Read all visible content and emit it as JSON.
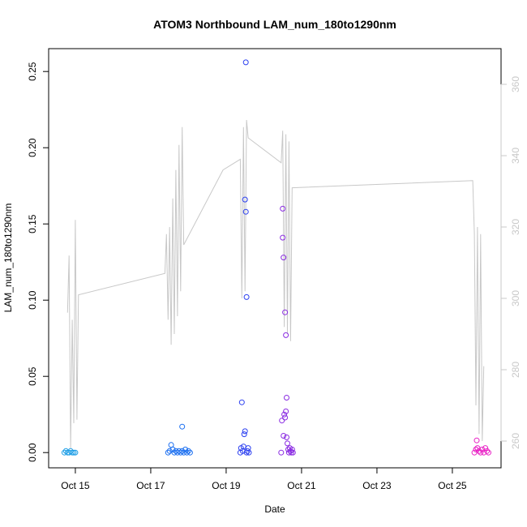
{
  "chart_data": {
    "type": "scatter",
    "title": "ATOM3 Northbound LAM_num_180to1290nm",
    "xlabel": "Date",
    "ylabel": "LAM_num_180to1290nm",
    "xlim": [
      "2016-10-14 07:00",
      "2016-10-26 07:00"
    ],
    "ylim": [
      -0.01,
      0.265
    ],
    "y2lim": [
      252.5,
      370
    ],
    "x_ticks": [
      {
        "date": "2016-10-15",
        "label": "Oct 15"
      },
      {
        "date": "2016-10-17",
        "label": "Oct 17"
      },
      {
        "date": "2016-10-19",
        "label": "Oct 19"
      },
      {
        "date": "2016-10-21",
        "label": "Oct 21"
      },
      {
        "date": "2016-10-23",
        "label": "Oct 23"
      },
      {
        "date": "2016-10-25",
        "label": "Oct 25"
      }
    ],
    "y_ticks": [
      {
        "value": 0.0,
        "label": "0.00"
      },
      {
        "value": 0.05,
        "label": "0.05"
      },
      {
        "value": 0.1,
        "label": "0.10"
      },
      {
        "value": 0.15,
        "label": "0.15"
      },
      {
        "value": 0.2,
        "label": "0.20"
      },
      {
        "value": 0.25,
        "label": "0.25"
      }
    ],
    "y2_ticks": [
      {
        "value": 260,
        "label": "260"
      },
      {
        "value": 280,
        "label": "280"
      },
      {
        "value": 300,
        "label": "300"
      },
      {
        "value": 320,
        "label": "320"
      },
      {
        "value": 340,
        "label": "340"
      },
      {
        "value": 360,
        "label": "360"
      }
    ],
    "grid": false,
    "colors": {
      "box": "#000000",
      "line": "#c8c8c8",
      "right_axis": "#c8c8c8"
    },
    "scatter_points": [
      {
        "x": "2016-10-14 17:00",
        "y": 0.0,
        "color": "#1e9ee6"
      },
      {
        "x": "2016-10-14 18:00",
        "y": 0.001,
        "color": "#1e9ee6"
      },
      {
        "x": "2016-10-14 19:00",
        "y": 0.0,
        "color": "#1e9ee6"
      },
      {
        "x": "2016-10-14 20:00",
        "y": 0.0,
        "color": "#1e9ee6"
      },
      {
        "x": "2016-10-14 21:00",
        "y": 0.001,
        "color": "#1e9ee6"
      },
      {
        "x": "2016-10-14 22:00",
        "y": 0.0,
        "color": "#1e9ee6"
      },
      {
        "x": "2016-10-14 23:00",
        "y": 0.0,
        "color": "#1e9ee6"
      },
      {
        "x": "2016-10-15 00:00",
        "y": 0.0,
        "color": "#1e9ee6"
      },
      {
        "x": "2016-10-17 11:00",
        "y": 0.0,
        "color": "#1a6ef0"
      },
      {
        "x": "2016-10-17 12:00",
        "y": 0.001,
        "color": "#1a6ef0"
      },
      {
        "x": "2016-10-17 13:00",
        "y": 0.005,
        "color": "#1a6ef0"
      },
      {
        "x": "2016-10-17 14:00",
        "y": 0.002,
        "color": "#1a6ef0"
      },
      {
        "x": "2016-10-17 15:00",
        "y": 0.0,
        "color": "#1a6ef0"
      },
      {
        "x": "2016-10-17 16:00",
        "y": 0.001,
        "color": "#1a6ef0"
      },
      {
        "x": "2016-10-17 17:00",
        "y": 0.0,
        "color": "#1a6ef0"
      },
      {
        "x": "2016-10-17 18:00",
        "y": 0.001,
        "color": "#1a6ef0"
      },
      {
        "x": "2016-10-17 19:00",
        "y": 0.0,
        "color": "#1a6ef0"
      },
      {
        "x": "2016-10-17 20:00",
        "y": 0.001,
        "color": "#1a6ef0"
      },
      {
        "x": "2016-10-17 21:00",
        "y": 0.0,
        "color": "#1a6ef0"
      },
      {
        "x": "2016-10-17 22:00",
        "y": 0.002,
        "color": "#1a6ef0"
      },
      {
        "x": "2016-10-17 23:00",
        "y": 0.0,
        "color": "#1a6ef0"
      },
      {
        "x": "2016-10-18 00:00",
        "y": 0.001,
        "color": "#1a6ef0"
      },
      {
        "x": "2016-10-18 01:00",
        "y": 0.0,
        "color": "#1a6ef0"
      },
      {
        "x": "2016-10-17 20:00",
        "y": 0.017,
        "color": "#1a6ef0"
      },
      {
        "x": "2016-10-19 09:00",
        "y": 0.0,
        "color": "#2b3ff0"
      },
      {
        "x": "2016-10-19 09:30",
        "y": 0.003,
        "color": "#2b3ff0"
      },
      {
        "x": "2016-10-19 10:00",
        "y": 0.033,
        "color": "#2b3ff0"
      },
      {
        "x": "2016-10-19 10:30",
        "y": 0.001,
        "color": "#2b3ff0"
      },
      {
        "x": "2016-10-19 11:00",
        "y": 0.004,
        "color": "#2b3ff0"
      },
      {
        "x": "2016-10-19 11:30",
        "y": 0.012,
        "color": "#2b3ff0"
      },
      {
        "x": "2016-10-19 12:00",
        "y": 0.166,
        "color": "#2b3ff0"
      },
      {
        "x": "2016-10-19 12:00",
        "y": 0.014,
        "color": "#2b3ff0"
      },
      {
        "x": "2016-10-19 12:30",
        "y": 0.256,
        "color": "#2b3ff0"
      },
      {
        "x": "2016-10-19 12:30",
        "y": 0.158,
        "color": "#2b3ff0"
      },
      {
        "x": "2016-10-19 13:00",
        "y": 0.102,
        "color": "#2b3ff0"
      },
      {
        "x": "2016-10-19 13:00",
        "y": 0.0,
        "color": "#2b3ff0"
      },
      {
        "x": "2016-10-19 13:30",
        "y": 0.001,
        "color": "#2b3ff0"
      },
      {
        "x": "2016-10-19 14:00",
        "y": 0.003,
        "color": "#2b3ff0"
      },
      {
        "x": "2016-10-19 14:30",
        "y": 0.0,
        "color": "#2b3ff0"
      },
      {
        "x": "2016-10-20 11:00",
        "y": 0.0,
        "color": "#8a2be2"
      },
      {
        "x": "2016-10-20 11:30",
        "y": 0.021,
        "color": "#8a2be2"
      },
      {
        "x": "2016-10-20 12:00",
        "y": 0.16,
        "color": "#8a2be2"
      },
      {
        "x": "2016-10-20 12:00",
        "y": 0.141,
        "color": "#8a2be2"
      },
      {
        "x": "2016-10-20 12:30",
        "y": 0.128,
        "color": "#8a2be2"
      },
      {
        "x": "2016-10-20 12:30",
        "y": 0.011,
        "color": "#8a2be2"
      },
      {
        "x": "2016-10-20 13:00",
        "y": 0.025,
        "color": "#8a2be2"
      },
      {
        "x": "2016-10-20 13:30",
        "y": 0.092,
        "color": "#8a2be2"
      },
      {
        "x": "2016-10-20 13:30",
        "y": 0.023,
        "color": "#8a2be2"
      },
      {
        "x": "2016-10-20 14:00",
        "y": 0.027,
        "color": "#8a2be2"
      },
      {
        "x": "2016-10-20 14:00",
        "y": 0.077,
        "color": "#8a2be2"
      },
      {
        "x": "2016-10-20 14:30",
        "y": 0.036,
        "color": "#8a2be2"
      },
      {
        "x": "2016-10-20 14:30",
        "y": 0.01,
        "color": "#8a2be2"
      },
      {
        "x": "2016-10-20 15:00",
        "y": 0.006,
        "color": "#8a2be2"
      },
      {
        "x": "2016-10-20 15:30",
        "y": 0.002,
        "color": "#8a2be2"
      },
      {
        "x": "2016-10-20 16:00",
        "y": 0.0,
        "color": "#8a2be2"
      },
      {
        "x": "2016-10-20 16:30",
        "y": 0.003,
        "color": "#8a2be2"
      },
      {
        "x": "2016-10-20 17:00",
        "y": 0.001,
        "color": "#8a2be2"
      },
      {
        "x": "2016-10-20 17:30",
        "y": 0.0,
        "color": "#8a2be2"
      },
      {
        "x": "2016-10-20 18:00",
        "y": 0.002,
        "color": "#8a2be2"
      },
      {
        "x": "2016-10-20 18:30",
        "y": 0.0,
        "color": "#8a2be2"
      },
      {
        "x": "2016-10-25 14:00",
        "y": 0.0,
        "color": "#e81fc4"
      },
      {
        "x": "2016-10-25 15:00",
        "y": 0.002,
        "color": "#e81fc4"
      },
      {
        "x": "2016-10-25 15:30",
        "y": 0.008,
        "color": "#e81fc4"
      },
      {
        "x": "2016-10-25 16:00",
        "y": 0.003,
        "color": "#e81fc4"
      },
      {
        "x": "2016-10-25 17:00",
        "y": 0.001,
        "color": "#e81fc4"
      },
      {
        "x": "2016-10-25 18:00",
        "y": 0.0,
        "color": "#e81fc4"
      },
      {
        "x": "2016-10-25 19:00",
        "y": 0.002,
        "color": "#e81fc4"
      },
      {
        "x": "2016-10-25 20:00",
        "y": 0.0,
        "color": "#e81fc4"
      },
      {
        "x": "2016-10-25 21:00",
        "y": 0.003,
        "color": "#e81fc4"
      },
      {
        "x": "2016-10-25 22:00",
        "y": 0.001,
        "color": "#e81fc4"
      },
      {
        "x": "2016-10-25 23:00",
        "y": 0.0,
        "color": "#e81fc4"
      }
    ],
    "line_segments": [
      [
        [
          "2016-10-14 19:00",
          296
        ],
        [
          "2016-10-14 20:00",
          312
        ],
        [
          "2016-10-14 21:00",
          258
        ],
        [
          "2016-10-14 22:00",
          294
        ],
        [
          "2016-10-14 23:00",
          265
        ],
        [
          "2016-10-15 00:00",
          322
        ],
        [
          "2016-10-15 01:00",
          266
        ],
        [
          "2016-10-15 02:00",
          301
        ],
        [
          "2016-10-17 09:00",
          307
        ],
        [
          "2016-10-17 10:00",
          318
        ],
        [
          "2016-10-17 11:00",
          294
        ],
        [
          "2016-10-17 12:00",
          320
        ],
        [
          "2016-10-17 13:00",
          287
        ],
        [
          "2016-10-17 14:00",
          328
        ],
        [
          "2016-10-17 15:00",
          290
        ],
        [
          "2016-10-17 16:00",
          336
        ],
        [
          "2016-10-17 17:00",
          295
        ],
        [
          "2016-10-17 18:00",
          343
        ],
        [
          "2016-10-17 19:00",
          302
        ],
        [
          "2016-10-17 20:00",
          348
        ],
        [
          "2016-10-17 21:00",
          315
        ],
        [
          "2016-10-18 22:00",
          336
        ],
        [
          "2016-10-19 09:00",
          339
        ],
        [
          "2016-10-19 10:00",
          300
        ],
        [
          "2016-10-19 11:00",
          348
        ],
        [
          "2016-10-19 12:00",
          302
        ],
        [
          "2016-10-19 13:00",
          350
        ],
        [
          "2016-10-19 14:00",
          345
        ],
        [
          "2016-10-20 11:00",
          338
        ],
        [
          "2016-10-20 12:00",
          347
        ],
        [
          "2016-10-20 13:00",
          292
        ],
        [
          "2016-10-20 14:00",
          346
        ],
        [
          "2016-10-20 15:00",
          290
        ],
        [
          "2016-10-20 16:00",
          344
        ],
        [
          "2016-10-20 17:00",
          288
        ],
        [
          "2016-10-20 18:00",
          331
        ],
        [
          "2016-10-25 13:00",
          333
        ],
        [
          "2016-10-25 14:00",
          318
        ],
        [
          "2016-10-25 15:00",
          270
        ],
        [
          "2016-10-25 16:00",
          320
        ],
        [
          "2016-10-25 17:00",
          262
        ],
        [
          "2016-10-25 18:00",
          318
        ],
        [
          "2016-10-25 19:00",
          260
        ],
        [
          "2016-10-25 20:00",
          281
        ]
      ]
    ]
  }
}
